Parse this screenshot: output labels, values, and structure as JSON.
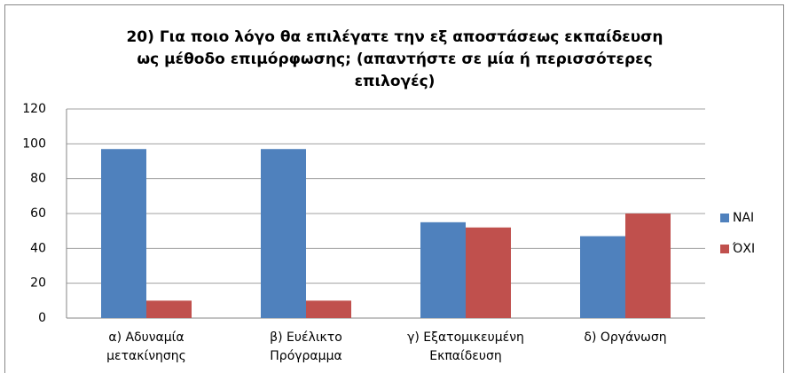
{
  "chart_data": {
    "type": "bar",
    "title": [
      "20) Για ποιο λόγο θα επιλέγατε την εξ αποστάσεως εκπαίδευση",
      "ως μέθοδο επιμόρφωσης; (απαντήστε σε μία ή περισσότερες",
      "επιλογές)"
    ],
    "categories": [
      [
        "α) Αδυναμία",
        "μετακίνησης"
      ],
      [
        "β) Ευέλικτο",
        "Πρόγραμμα"
      ],
      [
        "γ) Εξατομικευμένη",
        "Εκπαίδευση"
      ],
      [
        "δ) Οργάνωση"
      ]
    ],
    "series": [
      {
        "name": "ΝΑΙ",
        "color": "#4f81bd",
        "values": [
          97,
          97,
          55,
          47
        ]
      },
      {
        "name": "ΌΧΙ",
        "color": "#c0504d",
        "values": [
          10,
          10,
          52,
          60
        ]
      }
    ],
    "ylim": [
      0,
      120
    ],
    "yticks": [
      0,
      20,
      40,
      60,
      80,
      100,
      120
    ],
    "grid": true,
    "legend": "right"
  }
}
